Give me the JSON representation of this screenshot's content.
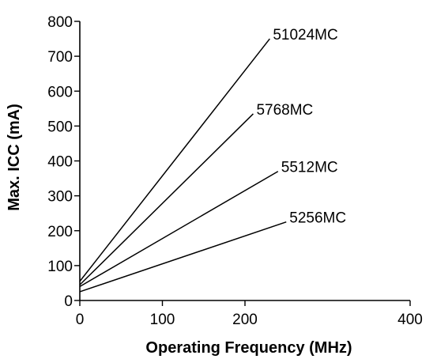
{
  "chart_data": {
    "type": "line",
    "title": "",
    "xlabel": "Operating Frequency (MHz)",
    "ylabel": "Max. ICC (mA)",
    "xlim": [
      0,
      400
    ],
    "ylim": [
      0,
      800
    ],
    "xticks": [
      0,
      100,
      200,
      400
    ],
    "yticks": [
      0,
      100,
      200,
      300,
      400,
      500,
      600,
      700,
      800
    ],
    "grid": false,
    "legend": "inline-labels",
    "series": [
      {
        "name": "51024MC",
        "x": [
          0,
          230
        ],
        "y": [
          55,
          750
        ]
      },
      {
        "name": "5768MC",
        "x": [
          0,
          210
        ],
        "y": [
          45,
          535
        ]
      },
      {
        "name": "5512MC",
        "x": [
          0,
          240
        ],
        "y": [
          40,
          370
        ]
      },
      {
        "name": "5256MC",
        "x": [
          0,
          250
        ],
        "y": [
          25,
          225
        ]
      }
    ]
  }
}
